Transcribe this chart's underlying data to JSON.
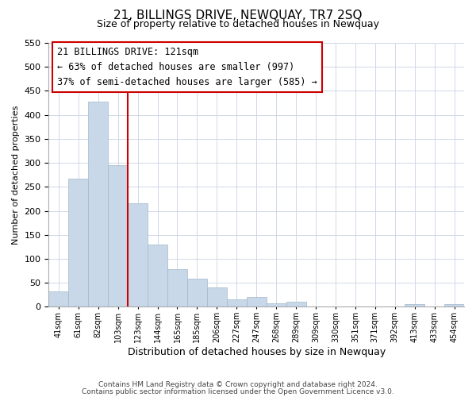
{
  "title": "21, BILLINGS DRIVE, NEWQUAY, TR7 2SQ",
  "subtitle": "Size of property relative to detached houses in Newquay",
  "xlabel": "Distribution of detached houses by size in Newquay",
  "ylabel": "Number of detached properties",
  "bar_color": "#c8d8e8",
  "bar_edge_color": "#a0b8cc",
  "bin_labels": [
    "41sqm",
    "61sqm",
    "82sqm",
    "103sqm",
    "123sqm",
    "144sqm",
    "165sqm",
    "185sqm",
    "206sqm",
    "227sqm",
    "247sqm",
    "268sqm",
    "289sqm",
    "309sqm",
    "330sqm",
    "351sqm",
    "371sqm",
    "392sqm",
    "413sqm",
    "433sqm",
    "454sqm"
  ],
  "bar_heights": [
    32,
    267,
    428,
    295,
    215,
    130,
    79,
    59,
    40,
    15,
    20,
    8,
    10,
    1,
    0,
    0,
    1,
    0,
    5,
    0,
    5
  ],
  "ylim": [
    0,
    550
  ],
  "yticks": [
    0,
    50,
    100,
    150,
    200,
    250,
    300,
    350,
    400,
    450,
    500,
    550
  ],
  "vline_x": 4,
  "vline_color": "#cc0000",
  "annotation_title": "21 BILLINGS DRIVE: 121sqm",
  "annotation_line1": "← 63% of detached houses are smaller (997)",
  "annotation_line2": "37% of semi-detached houses are larger (585) →",
  "annotation_box_color": "#ffffff",
  "annotation_box_edge_color": "#cc0000",
  "footer_line1": "Contains HM Land Registry data © Crown copyright and database right 2024.",
  "footer_line2": "Contains public sector information licensed under the Open Government Licence v3.0.",
  "background_color": "#ffffff",
  "grid_color": "#d0d8e8"
}
